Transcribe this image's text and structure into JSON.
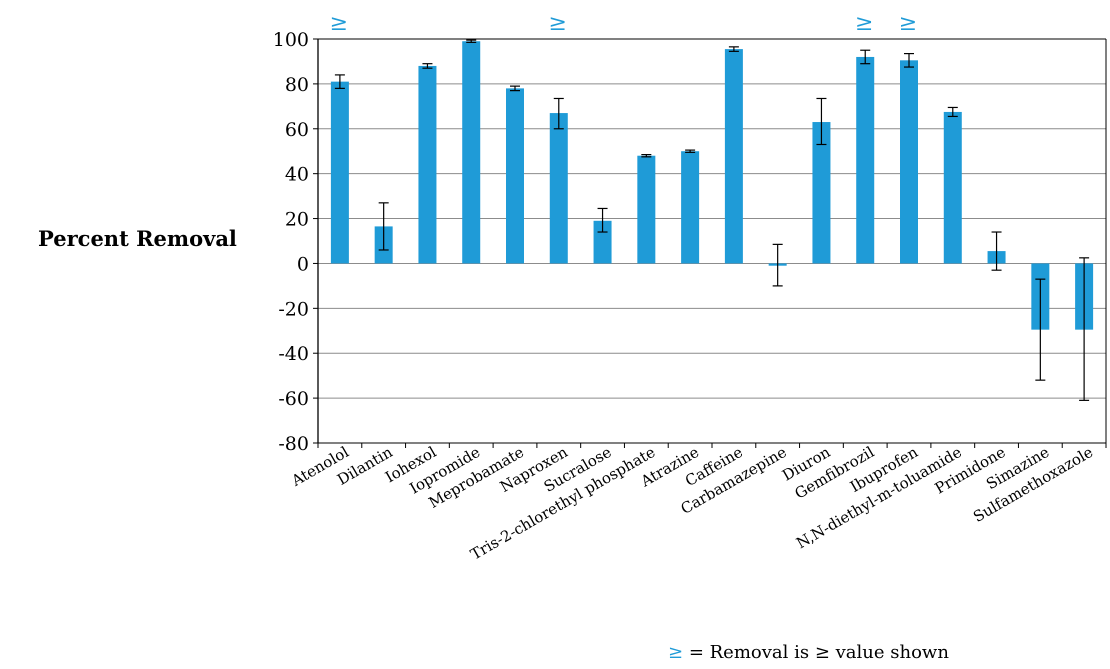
{
  "chart_data": {
    "type": "bar",
    "ylabel": "Percent Removal",
    "xlabel": "",
    "ylim": [
      -80,
      100
    ],
    "yticks": [
      100,
      80,
      60,
      40,
      20,
      0,
      -20,
      -40,
      -60,
      -80
    ],
    "grid": true,
    "bar_color": "#1f9bd7",
    "marker_color": "#1f9bd7",
    "categories": [
      "Atenolol",
      "Dilantin",
      "Iohexol",
      "Iopromide",
      "Meprobamate",
      "Naproxen",
      "Sucralose",
      "Tris-2-chlorethyl phosphate",
      "Atrazine",
      "Caffeine",
      "Carbamazepine",
      "Diuron",
      "Gemfibrozil",
      "Ibuprofen",
      "N,N-diethyl-m-toluamide",
      "Primidone",
      "Simazine",
      "Sulfamethoxazole"
    ],
    "values": [
      81,
      16.5,
      88,
      99,
      78,
      67,
      19,
      48,
      50,
      95.5,
      -1,
      63,
      92,
      90.5,
      67.5,
      5.5,
      -29.5,
      -29.5
    ],
    "error_low": [
      78,
      6,
      87,
      98.5,
      77,
      60,
      14,
      47.5,
      49.5,
      94.5,
      -10,
      53,
      89,
      87.5,
      65.5,
      -3,
      -52,
      -61
    ],
    "error_high": [
      84,
      27,
      89,
      99.5,
      79,
      73.5,
      24.5,
      48.5,
      50.5,
      96.5,
      8.5,
      73.5,
      95,
      93.5,
      69.5,
      14,
      -7,
      2.5
    ],
    "marker_symbol": "≥",
    "markers_at": [
      "Atenolol",
      "Naproxen",
      "Gemfibrozil",
      "Ibuprofen"
    ]
  },
  "note": {
    "symbol": "≥",
    "text": " = Removal is ≥ value shown"
  }
}
